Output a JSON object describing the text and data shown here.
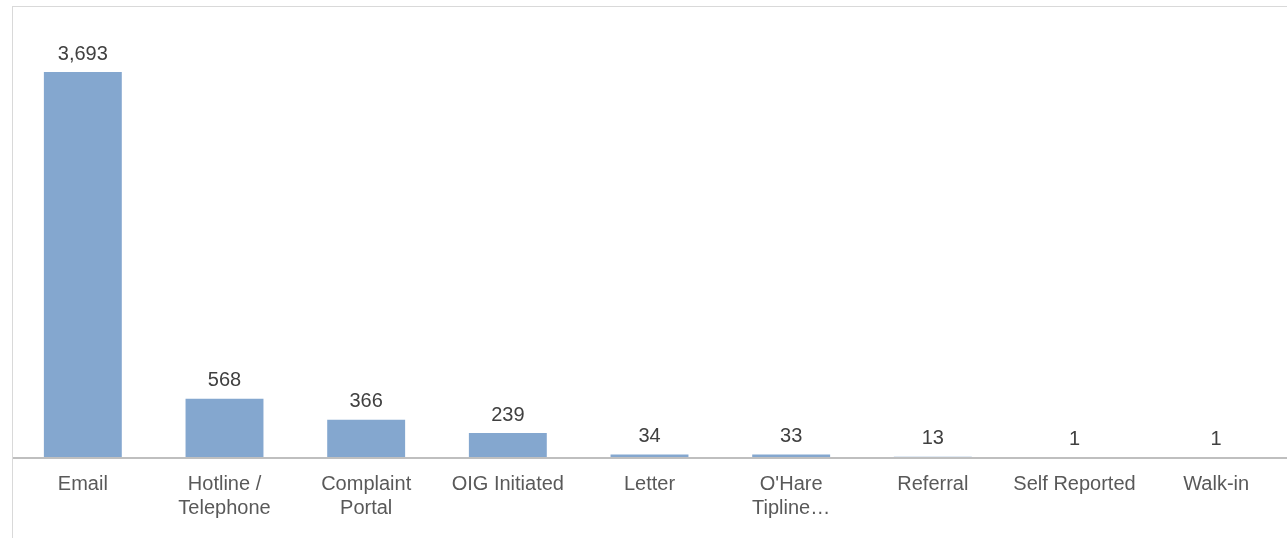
{
  "chart_data": {
    "type": "bar",
    "categories": [
      "Email",
      "Hotline / Telephone",
      "Complaint Portal",
      "OIG Initiated",
      "Letter",
      "O'Hare Tipline…",
      "Referral",
      "Self Reported",
      "Walk-in"
    ],
    "values": [
      3693,
      568,
      366,
      239,
      34,
      33,
      13,
      1,
      1
    ],
    "color": "#84a7cf",
    "value_labels": [
      "3,693",
      "568",
      "366",
      "239",
      "34",
      "33",
      "13",
      "1",
      "1"
    ],
    "grid": false,
    "legend": false
  }
}
